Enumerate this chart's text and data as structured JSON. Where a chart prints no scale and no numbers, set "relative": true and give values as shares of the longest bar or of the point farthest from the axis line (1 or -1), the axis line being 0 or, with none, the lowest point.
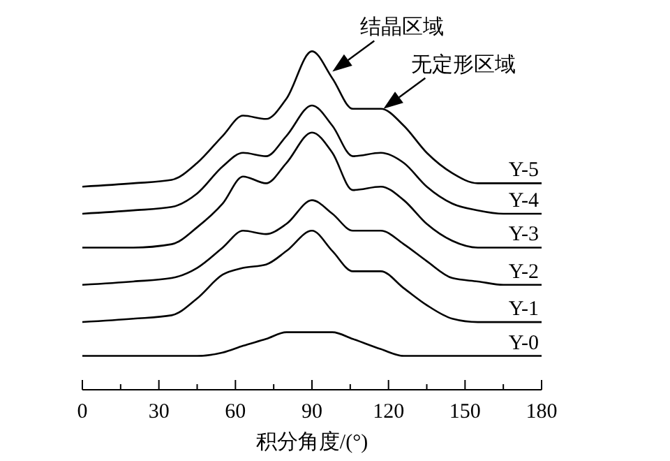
{
  "chart_data": {
    "type": "line",
    "relative": true,
    "xlabel": "积分角度/(°)",
    "tick_labels": "x",
    "xlim": [
      0,
      180
    ],
    "xticks": [
      0,
      {
        "value": 15,
        "label": null
      },
      30,
      {
        "value": 45,
        "label": null
      },
      60,
      {
        "value": 75,
        "label": null
      },
      90,
      {
        "value": 105,
        "label": null
      },
      120,
      {
        "value": 135,
        "label": null
      },
      150,
      {
        "value": 165,
        "label": null
      },
      180
    ],
    "x": [
      0,
      20,
      35,
      45,
      55,
      63,
      72,
      80,
      90,
      98,
      106,
      117,
      126,
      135,
      145,
      155,
      165,
      180
    ],
    "series": [
      {
        "name": "Y-0",
        "color": "#000000",
        "values": [
          0.1,
          0.1,
          0.1,
          0.1,
          0.11,
          0.13,
          0.15,
          0.17,
          0.17,
          0.17,
          0.15,
          0.12,
          0.1,
          0.1,
          0.1,
          0.1,
          0.1,
          0.1
        ]
      },
      {
        "name": "Y-1",
        "color": "#000000",
        "values": [
          0.2,
          0.21,
          0.22,
          0.27,
          0.34,
          0.36,
          0.37,
          0.41,
          0.47,
          0.41,
          0.35,
          0.35,
          0.3,
          0.25,
          0.21,
          0.2,
          0.2,
          0.2
        ]
      },
      {
        "name": "Y-2",
        "color": "#000000",
        "values": [
          0.31,
          0.32,
          0.33,
          0.36,
          0.42,
          0.47,
          0.46,
          0.49,
          0.56,
          0.52,
          0.47,
          0.47,
          0.43,
          0.38,
          0.33,
          0.32,
          0.31,
          0.31
        ]
      },
      {
        "name": "Y-3",
        "color": "#000000",
        "values": [
          0.42,
          0.42,
          0.43,
          0.48,
          0.55,
          0.63,
          0.61,
          0.67,
          0.76,
          0.7,
          0.59,
          0.6,
          0.56,
          0.49,
          0.44,
          0.42,
          0.42,
          0.42
        ]
      },
      {
        "name": "Y-4",
        "color": "#000000",
        "values": [
          0.52,
          0.53,
          0.54,
          0.58,
          0.66,
          0.7,
          0.69,
          0.75,
          0.84,
          0.78,
          0.69,
          0.7,
          0.67,
          0.6,
          0.55,
          0.53,
          0.52,
          0.52
        ]
      },
      {
        "name": "Y-5",
        "color": "#000000",
        "values": [
          0.6,
          0.61,
          0.62,
          0.67,
          0.75,
          0.81,
          0.8,
          0.86,
          1.0,
          0.92,
          0.83,
          0.83,
          0.78,
          0.7,
          0.64,
          0.61,
          0.61,
          0.61
        ]
      }
    ],
    "annotations": [
      {
        "text": "结晶区域",
        "x": 98,
        "y": 0.94
      },
      {
        "text": "无定形区域",
        "x": 118,
        "y": 0.83
      }
    ]
  }
}
